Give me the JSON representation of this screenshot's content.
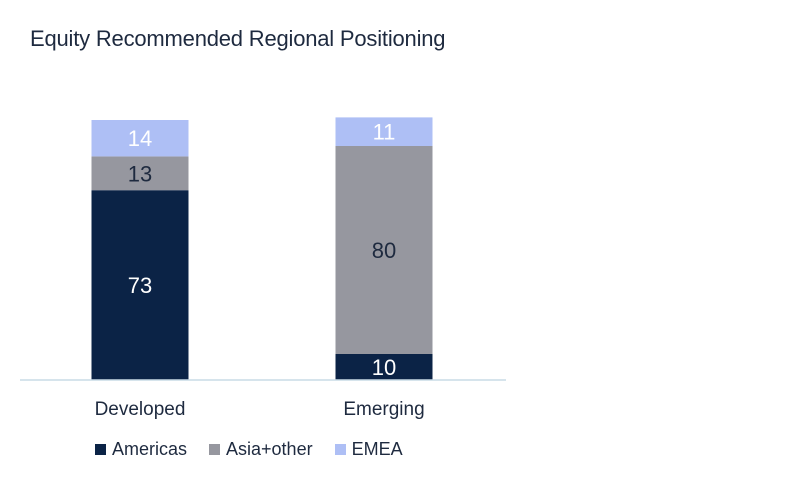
{
  "title": "Equity Recommended Regional Positioning",
  "chart_data": {
    "type": "bar",
    "stacked": true,
    "title": "Equity Recommended Regional Positioning",
    "categories": [
      "Developed",
      "Emerging"
    ],
    "series": [
      {
        "name": "Americas",
        "values": [
          73,
          10
        ],
        "color": "#0b2346",
        "label_color": "#ffffff"
      },
      {
        "name": "Asia+other",
        "values": [
          13,
          80
        ],
        "color": "#96979f",
        "label_color": "#1e2a3f"
      },
      {
        "name": "EMEA",
        "values": [
          14,
          11
        ],
        "color": "#aebff5",
        "label_color": "#ffffff"
      }
    ],
    "ylim": [
      0,
      100
    ],
    "xlabel": "",
    "ylabel": "",
    "grid": false,
    "legend_position": "bottom-left"
  }
}
